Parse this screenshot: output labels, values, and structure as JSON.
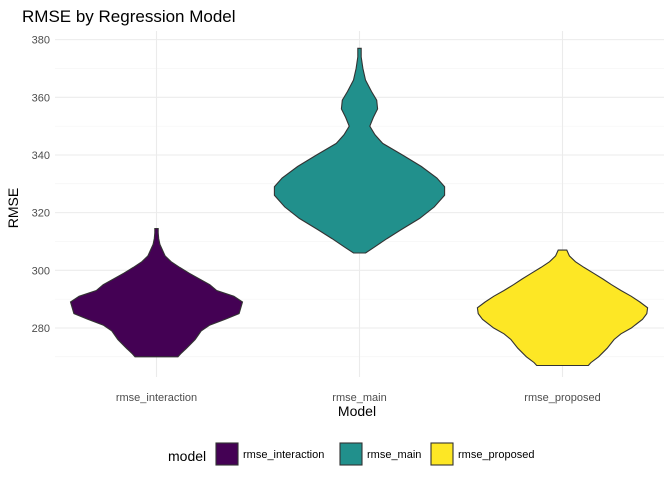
{
  "chart_data": {
    "type": "violin",
    "title": "RMSE by Regression Model",
    "xlabel": "Model",
    "ylabel": "RMSE",
    "categories": [
      "rmse_interaction",
      "rmse_main",
      "rmse_proposed"
    ],
    "yticks": [
      280,
      300,
      320,
      340,
      360,
      380
    ],
    "ylim": [
      263,
      383
    ],
    "grid": true,
    "legend": {
      "title": "model",
      "placement": "bottom",
      "entries": [
        "rmse_interaction",
        "rmse_main",
        "rmse_proposed"
      ]
    },
    "colors": [
      "#440154",
      "#21908C",
      "#FDE725"
    ],
    "series": [
      {
        "category": "rmse_interaction",
        "min": 270,
        "max": 314.5,
        "density_profile": [
          [
            270,
            0.25
          ],
          [
            271,
            0.28
          ],
          [
            273,
            0.35
          ],
          [
            276,
            0.45
          ],
          [
            279,
            0.52
          ],
          [
            281,
            0.62
          ],
          [
            283,
            0.8
          ],
          [
            285,
            0.96
          ],
          [
            287,
            0.98
          ],
          [
            289,
            1.0
          ],
          [
            291,
            0.9
          ],
          [
            293,
            0.7
          ],
          [
            295,
            0.62
          ],
          [
            297,
            0.5
          ],
          [
            299,
            0.38
          ],
          [
            301,
            0.27
          ],
          [
            303,
            0.17
          ],
          [
            305,
            0.1
          ],
          [
            307,
            0.07
          ],
          [
            309,
            0.04
          ],
          [
            311,
            0.025
          ],
          [
            313,
            0.02
          ],
          [
            314.5,
            0.02
          ]
        ]
      },
      {
        "category": "rmse_main",
        "min": 306,
        "max": 377,
        "density_profile": [
          [
            306,
            0.07
          ],
          [
            308,
            0.17
          ],
          [
            311,
            0.32
          ],
          [
            314,
            0.48
          ],
          [
            318,
            0.7
          ],
          [
            322,
            0.87
          ],
          [
            326,
            0.99
          ],
          [
            329,
            0.99
          ],
          [
            332,
            0.9
          ],
          [
            336,
            0.72
          ],
          [
            340,
            0.5
          ],
          [
            344,
            0.27
          ],
          [
            347,
            0.18
          ],
          [
            350,
            0.12
          ],
          [
            353,
            0.16
          ],
          [
            356,
            0.21
          ],
          [
            359,
            0.2
          ],
          [
            362,
            0.14
          ],
          [
            366,
            0.07
          ],
          [
            370,
            0.04
          ],
          [
            374,
            0.02
          ],
          [
            377,
            0.02
          ]
        ]
      },
      {
        "category": "rmse_proposed",
        "min": 267,
        "max": 307,
        "density_profile": [
          [
            267,
            0.3
          ],
          [
            268,
            0.33
          ],
          [
            270,
            0.42
          ],
          [
            273,
            0.52
          ],
          [
            276,
            0.6
          ],
          [
            278,
            0.68
          ],
          [
            280,
            0.8
          ],
          [
            283,
            0.93
          ],
          [
            285,
            0.98
          ],
          [
            287,
            0.99
          ],
          [
            289,
            0.9
          ],
          [
            291,
            0.8
          ],
          [
            293,
            0.68
          ],
          [
            295,
            0.57
          ],
          [
            297,
            0.47
          ],
          [
            299,
            0.36
          ],
          [
            301,
            0.25
          ],
          [
            303,
            0.15
          ],
          [
            305,
            0.08
          ],
          [
            307,
            0.05
          ]
        ]
      }
    ]
  }
}
